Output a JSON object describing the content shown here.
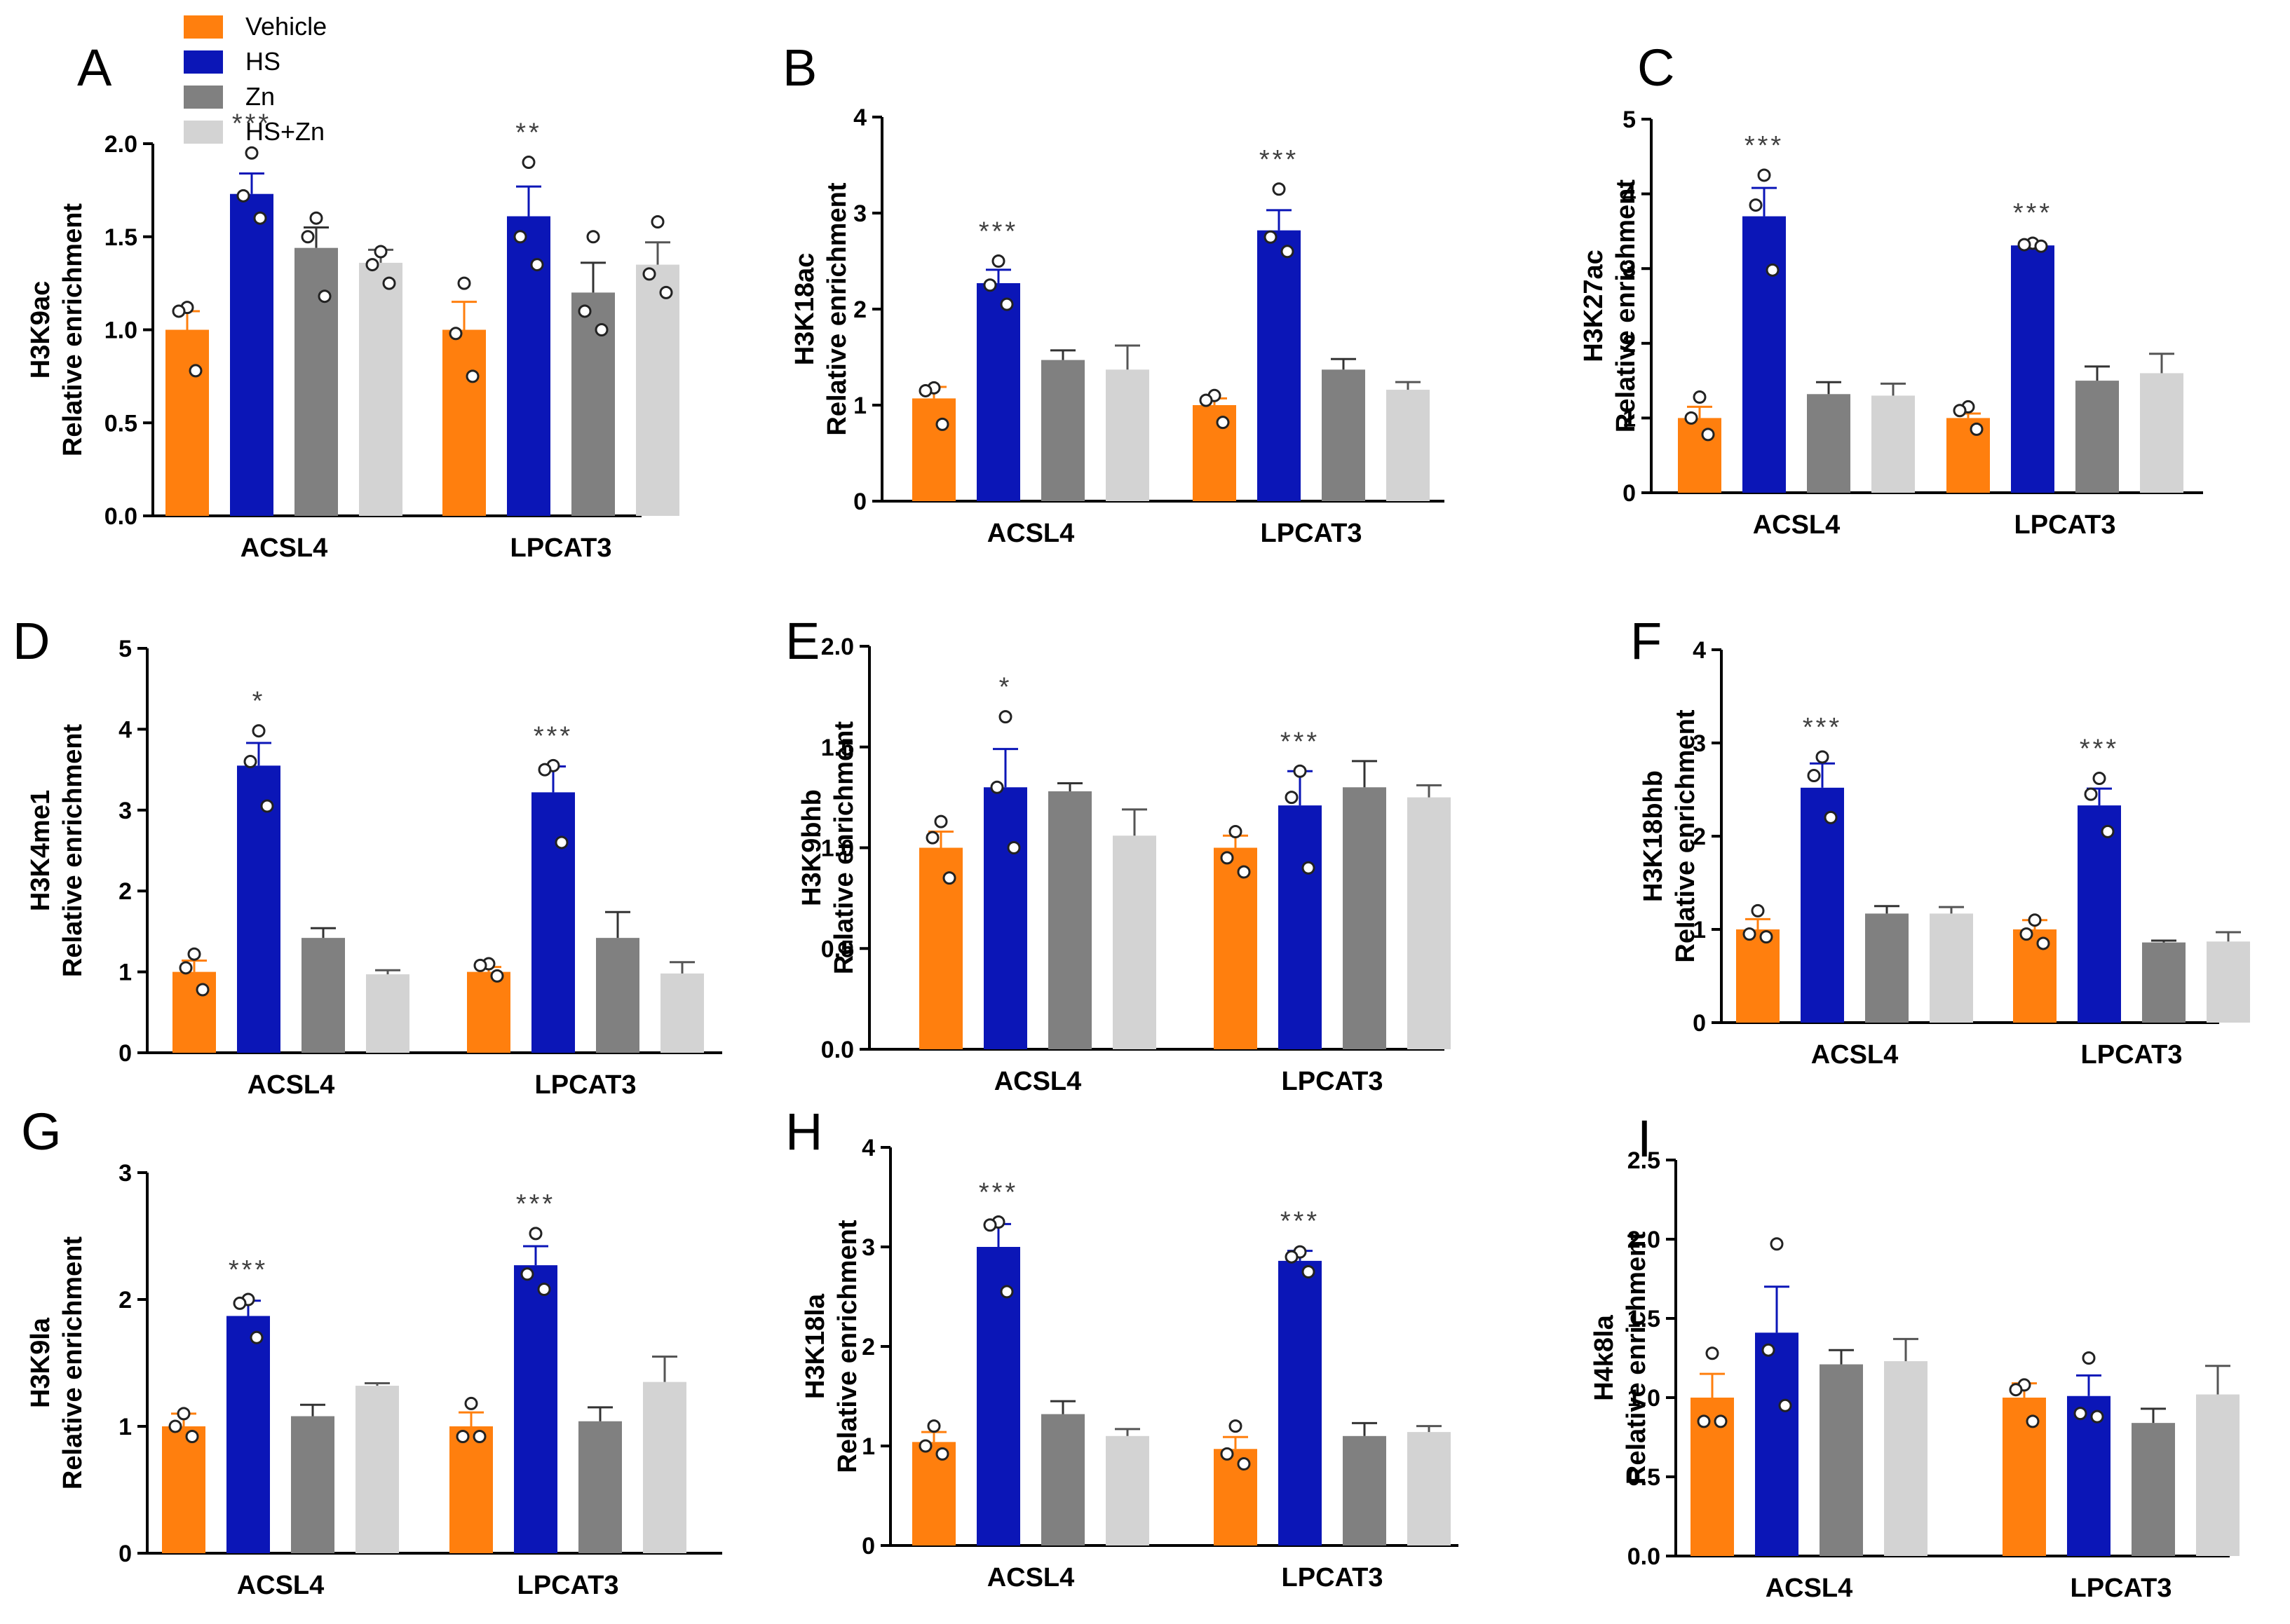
{
  "legend": {
    "items": [
      {
        "label": "Vehicle",
        "color": "#FF7F0E"
      },
      {
        "label": "HS",
        "color": "#0B16B7"
      },
      {
        "label": "Zn",
        "color": "#808080"
      },
      {
        "label": "HS+Zn",
        "color": "#D3D3D3"
      }
    ]
  },
  "colors": {
    "Vehicle": "#FF7F0E",
    "HS": "#0B16B7",
    "Zn": "#808080",
    "HS+Zn": "#D3D3D3",
    "axis": "#000000",
    "star": "#404040"
  },
  "chart_data": [
    {
      "type": "bar",
      "panel_label": "A",
      "ylabel_top": "H3K9ac",
      "ylabel_bottom": "Relative enrichment",
      "ylim": [
        0,
        2.0
      ],
      "yticks": [
        "0.0",
        "0.5",
        "1.0",
        "1.5",
        "2.0"
      ],
      "ytick_values": [
        0,
        0.5,
        1.0,
        1.5,
        2.0
      ],
      "categories": [
        "ACSL4",
        "LPCAT3"
      ],
      "series": [
        {
          "name": "Vehicle",
          "values": [
            1.0,
            1.0
          ],
          "errors": [
            0.1,
            0.15
          ],
          "points": [
            [
              1.12,
              1.1,
              0.78
            ],
            [
              1.25,
              0.98,
              0.75
            ]
          ]
        },
        {
          "name": "HS",
          "values": [
            1.73,
            1.61
          ],
          "errors": [
            0.11,
            0.16
          ],
          "points": [
            [
              1.95,
              1.72,
              1.6
            ],
            [
              1.9,
              1.5,
              1.35
            ]
          ]
        },
        {
          "name": "Zn",
          "values": [
            1.44,
            1.2
          ],
          "errors": [
            0.11,
            0.16
          ],
          "points": [
            [
              1.6,
              1.5,
              1.18
            ],
            [
              1.5,
              1.1,
              1.0
            ]
          ]
        },
        {
          "name": "HS+Zn",
          "values": [
            1.36,
            1.35
          ],
          "errors": [
            0.07,
            0.12
          ],
          "points": [
            [
              1.42,
              1.35,
              1.25
            ],
            [
              1.58,
              1.3,
              1.2
            ]
          ]
        }
      ],
      "annotations": [
        {
          "category": 0,
          "series": 1,
          "text": "***"
        },
        {
          "category": 1,
          "series": 1,
          "text": "**"
        }
      ]
    },
    {
      "type": "bar",
      "panel_label": "B",
      "ylabel_top": "H3K18ac",
      "ylabel_bottom": "Relative enrichment",
      "ylim": [
        0,
        4
      ],
      "yticks": [
        "0",
        "1",
        "2",
        "3",
        "4"
      ],
      "ytick_values": [
        0,
        1,
        2,
        3,
        4
      ],
      "categories": [
        "ACSL4",
        "LPCAT3"
      ],
      "series": [
        {
          "name": "Vehicle",
          "values": [
            1.07,
            1.0
          ],
          "errors": [
            0.12,
            0.07
          ],
          "points": [
            [
              1.18,
              1.15,
              0.8
            ],
            [
              1.1,
              1.05,
              0.82
            ]
          ]
        },
        {
          "name": "HS",
          "values": [
            2.27,
            2.82
          ],
          "errors": [
            0.14,
            0.21
          ],
          "points": [
            [
              2.5,
              2.25,
              2.05
            ],
            [
              3.25,
              2.75,
              2.6
            ]
          ]
        },
        {
          "name": "Zn",
          "values": [
            1.47,
            1.37
          ],
          "errors": [
            0.1,
            0.11
          ],
          "points": []
        },
        {
          "name": "HS+Zn",
          "values": [
            1.37,
            1.16
          ],
          "errors": [
            0.25,
            0.08
          ],
          "points": []
        }
      ],
      "annotations": [
        {
          "category": 0,
          "series": 1,
          "text": "***"
        },
        {
          "category": 1,
          "series": 1,
          "text": "***"
        }
      ]
    },
    {
      "type": "bar",
      "panel_label": "C",
      "ylabel_top": "H3K27ac",
      "ylabel_bottom": "Relative enrichment",
      "ylim": [
        0,
        5
      ],
      "yticks": [
        "0",
        "1",
        "2",
        "3",
        "4",
        "5"
      ],
      "ytick_values": [
        0,
        1,
        2,
        3,
        4,
        5
      ],
      "categories": [
        "ACSL4",
        "LPCAT3"
      ],
      "series": [
        {
          "name": "Vehicle",
          "values": [
            1.0,
            1.0
          ],
          "errors": [
            0.15,
            0.06
          ],
          "points": [
            [
              1.28,
              1.0,
              0.78
            ],
            [
              1.15,
              1.1,
              0.85
            ]
          ]
        },
        {
          "name": "HS",
          "values": [
            3.7,
            3.31
          ],
          "errors": [
            0.38,
            0.04
          ],
          "points": [
            [
              4.25,
              3.85,
              2.98
            ],
            [
              3.34,
              3.32,
              3.3
            ]
          ]
        },
        {
          "name": "Zn",
          "values": [
            1.32,
            1.5
          ],
          "errors": [
            0.16,
            0.19
          ],
          "points": []
        },
        {
          "name": "HS+Zn",
          "values": [
            1.3,
            1.6
          ],
          "errors": [
            0.16,
            0.26
          ],
          "points": []
        }
      ],
      "annotations": [
        {
          "category": 0,
          "series": 1,
          "text": "***"
        },
        {
          "category": 1,
          "series": 1,
          "text": "***"
        }
      ]
    },
    {
      "type": "bar",
      "panel_label": "D",
      "ylabel_top": "H3K4me1",
      "ylabel_bottom": "Relative enrichment",
      "ylim": [
        0,
        5
      ],
      "yticks": [
        "0",
        "1",
        "2",
        "3",
        "4",
        "5"
      ],
      "ytick_values": [
        0,
        1,
        2,
        3,
        4,
        5
      ],
      "categories": [
        "ACSL4",
        "LPCAT3"
      ],
      "series": [
        {
          "name": "Vehicle",
          "values": [
            1.0,
            1.0
          ],
          "errors": [
            0.14,
            0.06
          ],
          "points": [
            [
              1.22,
              1.05,
              0.78
            ],
            [
              1.1,
              1.08,
              0.95
            ]
          ]
        },
        {
          "name": "HS",
          "values": [
            3.55,
            3.22
          ],
          "errors": [
            0.28,
            0.32
          ],
          "points": [
            [
              3.98,
              3.6,
              3.05
            ],
            [
              3.55,
              3.5,
              2.6
            ]
          ]
        },
        {
          "name": "Zn",
          "values": [
            1.42,
            1.42
          ],
          "errors": [
            0.12,
            0.32
          ],
          "points": []
        },
        {
          "name": "HS+Zn",
          "values": [
            0.97,
            0.98
          ],
          "errors": [
            0.05,
            0.14
          ],
          "points": []
        }
      ],
      "annotations": [
        {
          "category": 0,
          "series": 1,
          "text": "*"
        },
        {
          "category": 1,
          "series": 1,
          "text": "***"
        }
      ]
    },
    {
      "type": "bar",
      "panel_label": "E",
      "ylabel_top": "H3K9bhb",
      "ylabel_bottom": "Relative enrichment",
      "ylim": [
        0,
        2.0
      ],
      "yticks": [
        "0.0",
        "0.5",
        "1.0",
        "1.5",
        "2.0"
      ],
      "ytick_values": [
        0,
        0.5,
        1.0,
        1.5,
        2.0
      ],
      "categories": [
        "ACSL4",
        "LPCAT3"
      ],
      "series": [
        {
          "name": "Vehicle",
          "values": [
            1.0,
            1.0
          ],
          "errors": [
            0.08,
            0.06
          ],
          "points": [
            [
              1.13,
              1.05,
              0.85
            ],
            [
              1.08,
              0.95,
              0.88
            ]
          ]
        },
        {
          "name": "HS",
          "values": [
            1.3,
            1.21
          ],
          "errors": [
            0.19,
            0.17
          ],
          "points": [
            [
              1.65,
              1.3,
              1.0
            ],
            [
              1.38,
              1.25,
              0.9
            ]
          ]
        },
        {
          "name": "Zn",
          "values": [
            1.28,
            1.3
          ],
          "errors": [
            0.04,
            0.13
          ],
          "points": []
        },
        {
          "name": "HS+Zn",
          "values": [
            1.06,
            1.25
          ],
          "errors": [
            0.13,
            0.06
          ],
          "points": []
        }
      ],
      "annotations": [
        {
          "category": 0,
          "series": 1,
          "text": "*"
        },
        {
          "category": 1,
          "series": 1,
          "text": "***"
        }
      ]
    },
    {
      "type": "bar",
      "panel_label": "F",
      "ylabel_top": "H3K18bhb",
      "ylabel_bottom": "Relative enrichment",
      "ylim": [
        0,
        4
      ],
      "yticks": [
        "0",
        "1",
        "2",
        "3",
        "4"
      ],
      "ytick_values": [
        0,
        1,
        2,
        3,
        4
      ],
      "categories": [
        "ACSL4",
        "LPCAT3"
      ],
      "series": [
        {
          "name": "Vehicle",
          "values": [
            1.0,
            1.0
          ],
          "errors": [
            0.11,
            0.1
          ],
          "points": [
            [
              1.2,
              0.95,
              0.92
            ],
            [
              1.1,
              0.95,
              0.85
            ]
          ]
        },
        {
          "name": "HS",
          "values": [
            2.52,
            2.33
          ],
          "errors": [
            0.26,
            0.18
          ],
          "points": [
            [
              2.85,
              2.65,
              2.2
            ],
            [
              2.62,
              2.45,
              2.05
            ]
          ]
        },
        {
          "name": "Zn",
          "values": [
            1.17,
            0.86
          ],
          "errors": [
            0.08,
            0.02
          ],
          "points": []
        },
        {
          "name": "HS+Zn",
          "values": [
            1.17,
            0.87
          ],
          "errors": [
            0.07,
            0.1
          ],
          "points": []
        }
      ],
      "annotations": [
        {
          "category": 0,
          "series": 1,
          "text": "***"
        },
        {
          "category": 1,
          "series": 1,
          "text": "***"
        }
      ]
    },
    {
      "type": "bar",
      "panel_label": "G",
      "ylabel_top": "H3K9la",
      "ylabel_bottom": "Relative enrichment",
      "ylim": [
        0,
        3
      ],
      "yticks": [
        "0",
        "1",
        "2",
        "3"
      ],
      "ytick_values": [
        0,
        1,
        2,
        3
      ],
      "categories": [
        "ACSL4",
        "LPCAT3"
      ],
      "series": [
        {
          "name": "Vehicle",
          "values": [
            1.0,
            1.0
          ],
          "errors": [
            0.1,
            0.11
          ],
          "points": [
            [
              1.1,
              1.0,
              0.92
            ],
            [
              1.18,
              0.92,
              0.92
            ]
          ]
        },
        {
          "name": "HS",
          "values": [
            1.87,
            2.27
          ],
          "errors": [
            0.12,
            0.15
          ],
          "points": [
            [
              2.0,
              1.97,
              1.7
            ],
            [
              2.52,
              2.2,
              2.08
            ]
          ]
        },
        {
          "name": "Zn",
          "values": [
            1.08,
            1.04
          ],
          "errors": [
            0.09,
            0.11
          ],
          "points": []
        },
        {
          "name": "HS+Zn",
          "values": [
            1.32,
            1.35
          ],
          "errors": [
            0.02,
            0.2
          ],
          "points": []
        }
      ],
      "annotations": [
        {
          "category": 0,
          "series": 1,
          "text": "***"
        },
        {
          "category": 1,
          "series": 1,
          "text": "***"
        }
      ]
    },
    {
      "type": "bar",
      "panel_label": "H",
      "ylabel_top": "H3K18la",
      "ylabel_bottom": "Relative enrichment",
      "ylim": [
        0,
        4
      ],
      "yticks": [
        "0",
        "1",
        "2",
        "3",
        "4"
      ],
      "ytick_values": [
        0,
        1,
        2,
        3,
        4
      ],
      "categories": [
        "ACSL4",
        "LPCAT3"
      ],
      "series": [
        {
          "name": "Vehicle",
          "values": [
            1.04,
            0.97
          ],
          "errors": [
            0.1,
            0.12
          ],
          "points": [
            [
              1.2,
              1.0,
              0.92
            ],
            [
              1.2,
              0.92,
              0.82
            ]
          ]
        },
        {
          "name": "HS",
          "values": [
            3.0,
            2.86
          ],
          "errors": [
            0.23,
            0.1
          ],
          "points": [
            [
              3.25,
              3.22,
              2.55
            ],
            [
              2.95,
              2.9,
              2.75
            ]
          ]
        },
        {
          "name": "Zn",
          "values": [
            1.32,
            1.1
          ],
          "errors": [
            0.13,
            0.13
          ],
          "points": []
        },
        {
          "name": "HS+Zn",
          "values": [
            1.1,
            1.14
          ],
          "errors": [
            0.07,
            0.06
          ],
          "points": []
        }
      ],
      "annotations": [
        {
          "category": 0,
          "series": 1,
          "text": "***"
        },
        {
          "category": 1,
          "series": 1,
          "text": "***"
        }
      ]
    },
    {
      "type": "bar",
      "panel_label": "I",
      "ylabel_top": "H4k8la",
      "ylabel_bottom": "Relative enrichment",
      "ylim": [
        0,
        2.5
      ],
      "yticks": [
        "0.0",
        "0.5",
        "1.0",
        "1.5",
        "2.0",
        "2.5"
      ],
      "ytick_values": [
        0,
        0.5,
        1.0,
        1.5,
        2.0,
        2.5
      ],
      "categories": [
        "ACSL4",
        "LPCAT3"
      ],
      "series": [
        {
          "name": "Vehicle",
          "values": [
            1.0,
            1.0
          ],
          "errors": [
            0.15,
            0.09
          ],
          "points": [
            [
              1.28,
              0.85,
              0.85
            ],
            [
              1.08,
              1.05,
              0.85
            ]
          ]
        },
        {
          "name": "HS",
          "values": [
            1.41,
            1.01
          ],
          "errors": [
            0.29,
            0.13
          ],
          "points": [
            [
              1.97,
              1.3,
              0.95
            ],
            [
              1.25,
              0.9,
              0.88
            ]
          ]
        },
        {
          "name": "Zn",
          "values": [
            1.21,
            0.84
          ],
          "errors": [
            0.09,
            0.09
          ],
          "points": []
        },
        {
          "name": "HS+Zn",
          "values": [
            1.23,
            1.02
          ],
          "errors": [
            0.14,
            0.18
          ],
          "points": []
        }
      ],
      "annotations": []
    }
  ]
}
